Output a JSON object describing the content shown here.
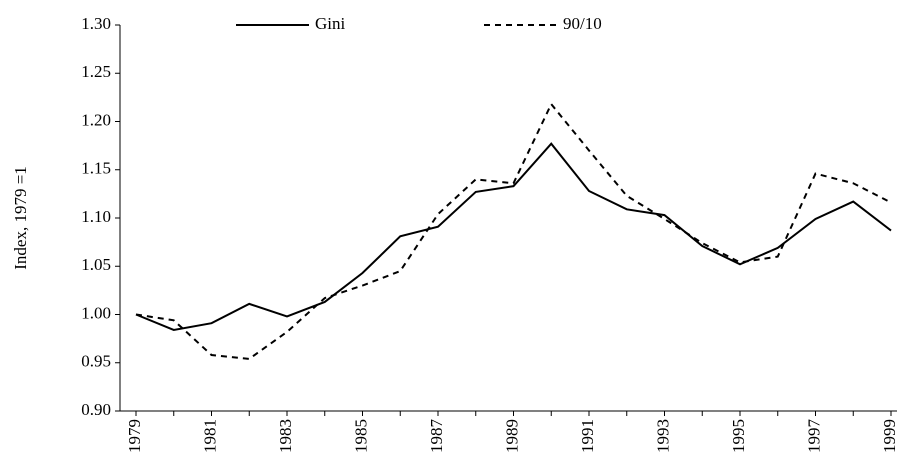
{
  "chart_data": {
    "type": "line",
    "y_label": "Index, 1979 =1",
    "categories": [
      "1979",
      null,
      "1981",
      null,
      "1983",
      null,
      "1985",
      null,
      "1987",
      null,
      "1989",
      null,
      "1991",
      null,
      "1993",
      null,
      "1995",
      null,
      "1997",
      null,
      "1999"
    ],
    "series": [
      {
        "name": "Gini",
        "color": "#000000",
        "dash": "solid",
        "values": [
          1.0,
          0.984,
          0.991,
          1.011,
          0.998,
          1.013,
          1.043,
          1.081,
          1.091,
          1.127,
          1.133,
          1.177,
          1.128,
          1.109,
          1.103,
          1.071,
          1.052,
          1.069,
          1.099,
          1.117,
          1.087
        ]
      },
      {
        "name": "90/10",
        "color": "#000000",
        "dash": "dashed",
        "values": [
          1.0,
          0.994,
          0.958,
          0.954,
          0.982,
          1.017,
          1.03,
          1.045,
          1.104,
          1.14,
          1.136,
          1.218,
          1.17,
          1.123,
          1.099,
          1.074,
          1.054,
          1.06,
          1.146,
          1.136,
          1.116
        ]
      }
    ],
    "ylim": [
      0.9,
      1.3
    ],
    "yticks": [
      {
        "value": 0.9,
        "label": "0.90"
      },
      {
        "value": 0.95,
        "label": "0.95"
      },
      {
        "value": 1.0,
        "label": "1.00"
      },
      {
        "value": 1.05,
        "label": "1.05"
      },
      {
        "value": 1.1,
        "label": "1.10"
      },
      {
        "value": 1.15,
        "label": "1.15"
      },
      {
        "value": 1.2,
        "label": "1.20"
      },
      {
        "value": 1.25,
        "label": "1.25"
      },
      {
        "value": 1.3,
        "label": "1.30"
      }
    ],
    "grid": false,
    "legend": "top"
  }
}
